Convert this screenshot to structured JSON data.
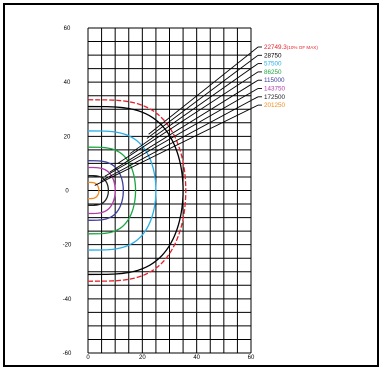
{
  "chart_data": {
    "type": "line",
    "title": "",
    "xlabel": "",
    "ylabel": "",
    "xlim": [
      0,
      60
    ],
    "ylim": [
      -60,
      60
    ],
    "x_ticks": [
      "0",
      "20",
      "40",
      "60"
    ],
    "y_ticks": [
      "60",
      "40",
      "20",
      "0",
      "-20",
      "-40",
      "-60"
    ],
    "grid": true,
    "legend_position": "right, outside the plot area",
    "series": [
      {
        "name": "22749.3",
        "name_suffix": "(10% OF MAX)",
        "color": "#e8202a",
        "dashed": true,
        "max_x": 36,
        "half_height": 33.5
      },
      {
        "name": "28750",
        "color": "#000000",
        "dashed": false,
        "max_x": 35,
        "half_height": 31
      },
      {
        "name": "57500",
        "color": "#29aee6",
        "dashed": false,
        "max_x": 25,
        "half_height": 22
      },
      {
        "name": "86250",
        "color": "#1aa640",
        "dashed": false,
        "max_x": 17.5,
        "half_height": 16
      },
      {
        "name": "115000",
        "color": "#3d3d9e",
        "dashed": false,
        "max_x": 13,
        "half_height": 11
      },
      {
        "name": "143750",
        "color": "#b03ca8",
        "dashed": false,
        "max_x": 10,
        "half_height": 8.5
      },
      {
        "name": "172500",
        "color": "#222222",
        "dashed": false,
        "max_x": 7.5,
        "half_height": 5.5
      },
      {
        "name": "201250",
        "color": "#f08a1e",
        "dashed": false,
        "max_x": 4,
        "half_height": 3
      }
    ]
  }
}
